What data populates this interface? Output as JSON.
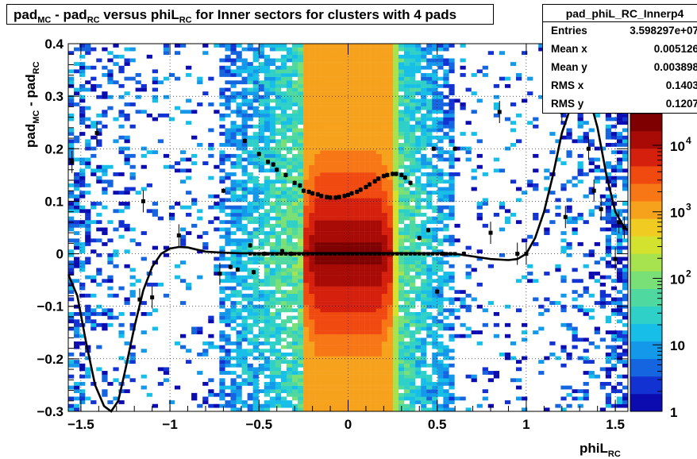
{
  "title": {
    "parts": [
      "pad",
      "MC",
      " - pad",
      "RC",
      " versus phiL",
      "RC",
      " for Inner sectors for clusters with 4 pads"
    ]
  },
  "stats_box": {
    "name": "pad_phiL_RC_Innerp4",
    "rows": [
      {
        "label": "Entries",
        "value": "3.598297e+07"
      },
      {
        "label": "Mean x",
        "value": "0.005126"
      },
      {
        "label": "Mean y",
        "value": "0.003898"
      },
      {
        "label": "RMS x",
        "value": "0.1403"
      },
      {
        "label": "RMS y",
        "value": "0.1207"
      }
    ]
  },
  "axes": {
    "xlabel_main": "phiL",
    "xlabel_sub": "RC",
    "ylabel_parts": [
      "pad",
      "MC",
      " - pad",
      "RC"
    ],
    "x_ticks": [
      "-1.5",
      "-1",
      "-0.5",
      "0",
      "0.5",
      "1",
      "1.5"
    ],
    "y_ticks": [
      "-0.3",
      "-0.2",
      "-0.1",
      "0",
      "0.1",
      "0.2",
      "0.3",
      "0.4"
    ],
    "z_ticks": [
      "1",
      "10",
      "10",
      "10",
      "10"
    ],
    "z_exponents": [
      "",
      "",
      "2",
      "3",
      "4"
    ]
  },
  "colors": {
    "palette": [
      "#0b0bb0",
      "#1332d2",
      "#1565e0",
      "#1498ea",
      "#17bfe8",
      "#2fd0c8",
      "#4fd9a0",
      "#79e077",
      "#a6e34f",
      "#d3e22f",
      "#f0cc22",
      "#f6a21c",
      "#f77716",
      "#f04a10",
      "#d4200c",
      "#a80a06",
      "#7f0000"
    ]
  },
  "chart_data": {
    "type": "heatmap",
    "title": "pad_MC - pad_RC versus phiL_RC for Inner sectors for clusters with 4 pads",
    "xlabel": "phiL_RC",
    "ylabel": "pad_MC - pad_RC",
    "xlim": [
      -1.5708,
      1.5708
    ],
    "ylim": [
      -0.3,
      0.4
    ],
    "zlim": [
      1,
      30000
    ],
    "z_scale": "log",
    "grid": true,
    "legend": "none",
    "dense_band_x": [
      -0.25,
      0.25
    ],
    "wings_x": [
      [
        -0.72,
        -0.25
      ],
      [
        0.25,
        0.6
      ]
    ],
    "profile_means": {
      "x": [
        -1.55,
        -1.41,
        -1.17,
        -1.15,
        -1.1,
        -0.95,
        -0.72,
        -0.7,
        -0.66,
        -0.62,
        -0.58,
        -0.55,
        -0.53,
        -0.5,
        -0.47,
        -0.45,
        -0.42,
        -0.4,
        -0.37,
        -0.35,
        -0.32,
        -0.3,
        -0.27,
        -0.25,
        -0.22,
        -0.2,
        -0.17,
        -0.15,
        -0.12,
        -0.1,
        -0.07,
        -0.05,
        -0.02,
        0.0,
        0.02,
        0.05,
        0.07,
        0.1,
        0.12,
        0.15,
        0.17,
        0.2,
        0.22,
        0.25,
        0.27,
        0.3,
        0.32,
        0.35,
        0.4,
        0.45,
        0.48,
        0.5,
        0.53,
        0.6,
        0.65,
        0.8,
        0.85,
        0.95,
        1.0,
        1.15,
        1.2,
        1.22,
        1.3,
        1.35,
        1.38,
        1.42,
        1.5,
        1.52,
        1.55
      ],
      "y": [
        0.175,
        0.23,
        -0.087,
        0.1,
        -0.083,
        0.035,
        -0.038,
        0.12,
        -0.025,
        -0.03,
        0.215,
        0.016,
        -0.035,
        0.19,
        0.0,
        0.175,
        0.17,
        0.16,
        0.005,
        0.15,
        0.0,
        0.135,
        0.13,
        0.12,
        0.118,
        0.115,
        0.113,
        0.11,
        0.108,
        0.107,
        0.107,
        0.108,
        0.11,
        0.112,
        0.115,
        0.118,
        0.122,
        0.127,
        0.132,
        0.138,
        0.143,
        0.148,
        0.15,
        0.152,
        0.152,
        0.15,
        0.145,
        0.135,
        0.03,
        0.045,
        0.2,
        -0.072,
        0.0,
        0.2,
        0.0,
        0.04,
        0.27,
        0.0,
        0.0,
        0.325,
        0.27,
        0.07,
        0.3,
        0.2,
        0.12,
        0.085,
        -0.01,
        0.06,
        0.05
      ],
      "center_row_y": 0.0
    },
    "fit_curve": {
      "x": [
        -1.57,
        -1.52,
        -1.47,
        -1.42,
        -1.37,
        -1.33,
        -1.29,
        -1.25,
        -1.2,
        -1.15,
        -1.1,
        -1.05,
        -1.0,
        -0.95,
        -0.9,
        -0.85,
        -0.8,
        -0.7,
        -0.6,
        -0.5,
        -0.3,
        0.0,
        0.3,
        0.5,
        0.6,
        0.7,
        0.8,
        0.9,
        0.95,
        1.0,
        1.05,
        1.1,
        1.15,
        1.2,
        1.25,
        1.3,
        1.33,
        1.36,
        1.4,
        1.45,
        1.5,
        1.55,
        1.57
      ],
      "y": [
        -0.04,
        -0.08,
        -0.17,
        -0.25,
        -0.29,
        -0.3,
        -0.28,
        -0.22,
        -0.14,
        -0.07,
        -0.025,
        0.0,
        0.01,
        0.013,
        0.012,
        0.008,
        0.004,
        0.002,
        0.001,
        0.001,
        0.001,
        0.001,
        0.001,
        0.001,
        0.0,
        -0.005,
        -0.01,
        -0.012,
        -0.01,
        0.0,
        0.03,
        0.08,
        0.15,
        0.23,
        0.28,
        0.3,
        0.3,
        0.29,
        0.24,
        0.15,
        0.08,
        0.05,
        0.045
      ]
    }
  }
}
